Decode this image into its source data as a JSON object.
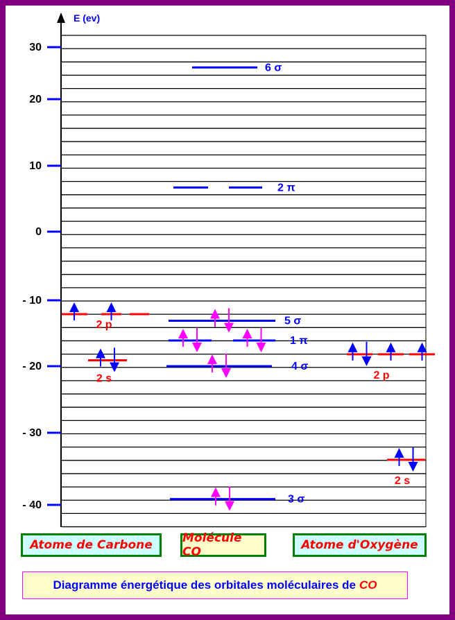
{
  "axis": {
    "label": "E (ev)",
    "ticks": [
      30,
      20,
      10,
      0,
      -10,
      -20,
      -30,
      -40
    ],
    "tick_labels": [
      "30",
      "20",
      "10",
      "0",
      "- 10",
      "- 20",
      "- 30",
      "- 40"
    ]
  },
  "colors": {
    "frame": "#800080",
    "mo_level": "#0000ff",
    "ao_level": "#ff0000",
    "electron_mo": "#ff00ff",
    "electron_ao": "#0000ff",
    "box_border": "#008000"
  },
  "carbon": {
    "levels": [
      {
        "name": "2 p",
        "energy": -12.1,
        "electrons": [
          "up",
          "up",
          ""
        ]
      },
      {
        "name": "2 s",
        "energy": -19.1,
        "electrons": [
          "updown"
        ]
      }
    ]
  },
  "molecule": {
    "levels": [
      {
        "name": "6 σ",
        "energy": 26.1,
        "electrons": [
          ""
        ]
      },
      {
        "name": "2 π",
        "energy": 6.7,
        "electrons": [
          "",
          ""
        ]
      },
      {
        "name": "5 σ",
        "energy": -13.1,
        "electrons": [
          "updown"
        ]
      },
      {
        "name": "1 π",
        "energy": -16.1,
        "electrons": [
          "updown",
          "updown"
        ]
      },
      {
        "name": "4 σ",
        "energy": -20.0,
        "electrons": [
          "updown"
        ]
      },
      {
        "name": "3 σ",
        "energy": -39.2,
        "electrons": [
          "updown"
        ]
      }
    ]
  },
  "oxygen": {
    "levels": [
      {
        "name": "2 p",
        "energy": -18.2,
        "electrons": [
          "updown",
          "up",
          "up"
        ]
      },
      {
        "name": "2 s",
        "energy": -33.75,
        "electrons": [
          "updown"
        ]
      }
    ]
  },
  "boxes": {
    "carbon": "Atome de Carbone",
    "molecule": "Molécule CO",
    "oxygen": "Atome d'Oxygène"
  },
  "caption": {
    "text": "Diagramme énergétique des orbitales moléculaires de",
    "highlight": "CO"
  }
}
